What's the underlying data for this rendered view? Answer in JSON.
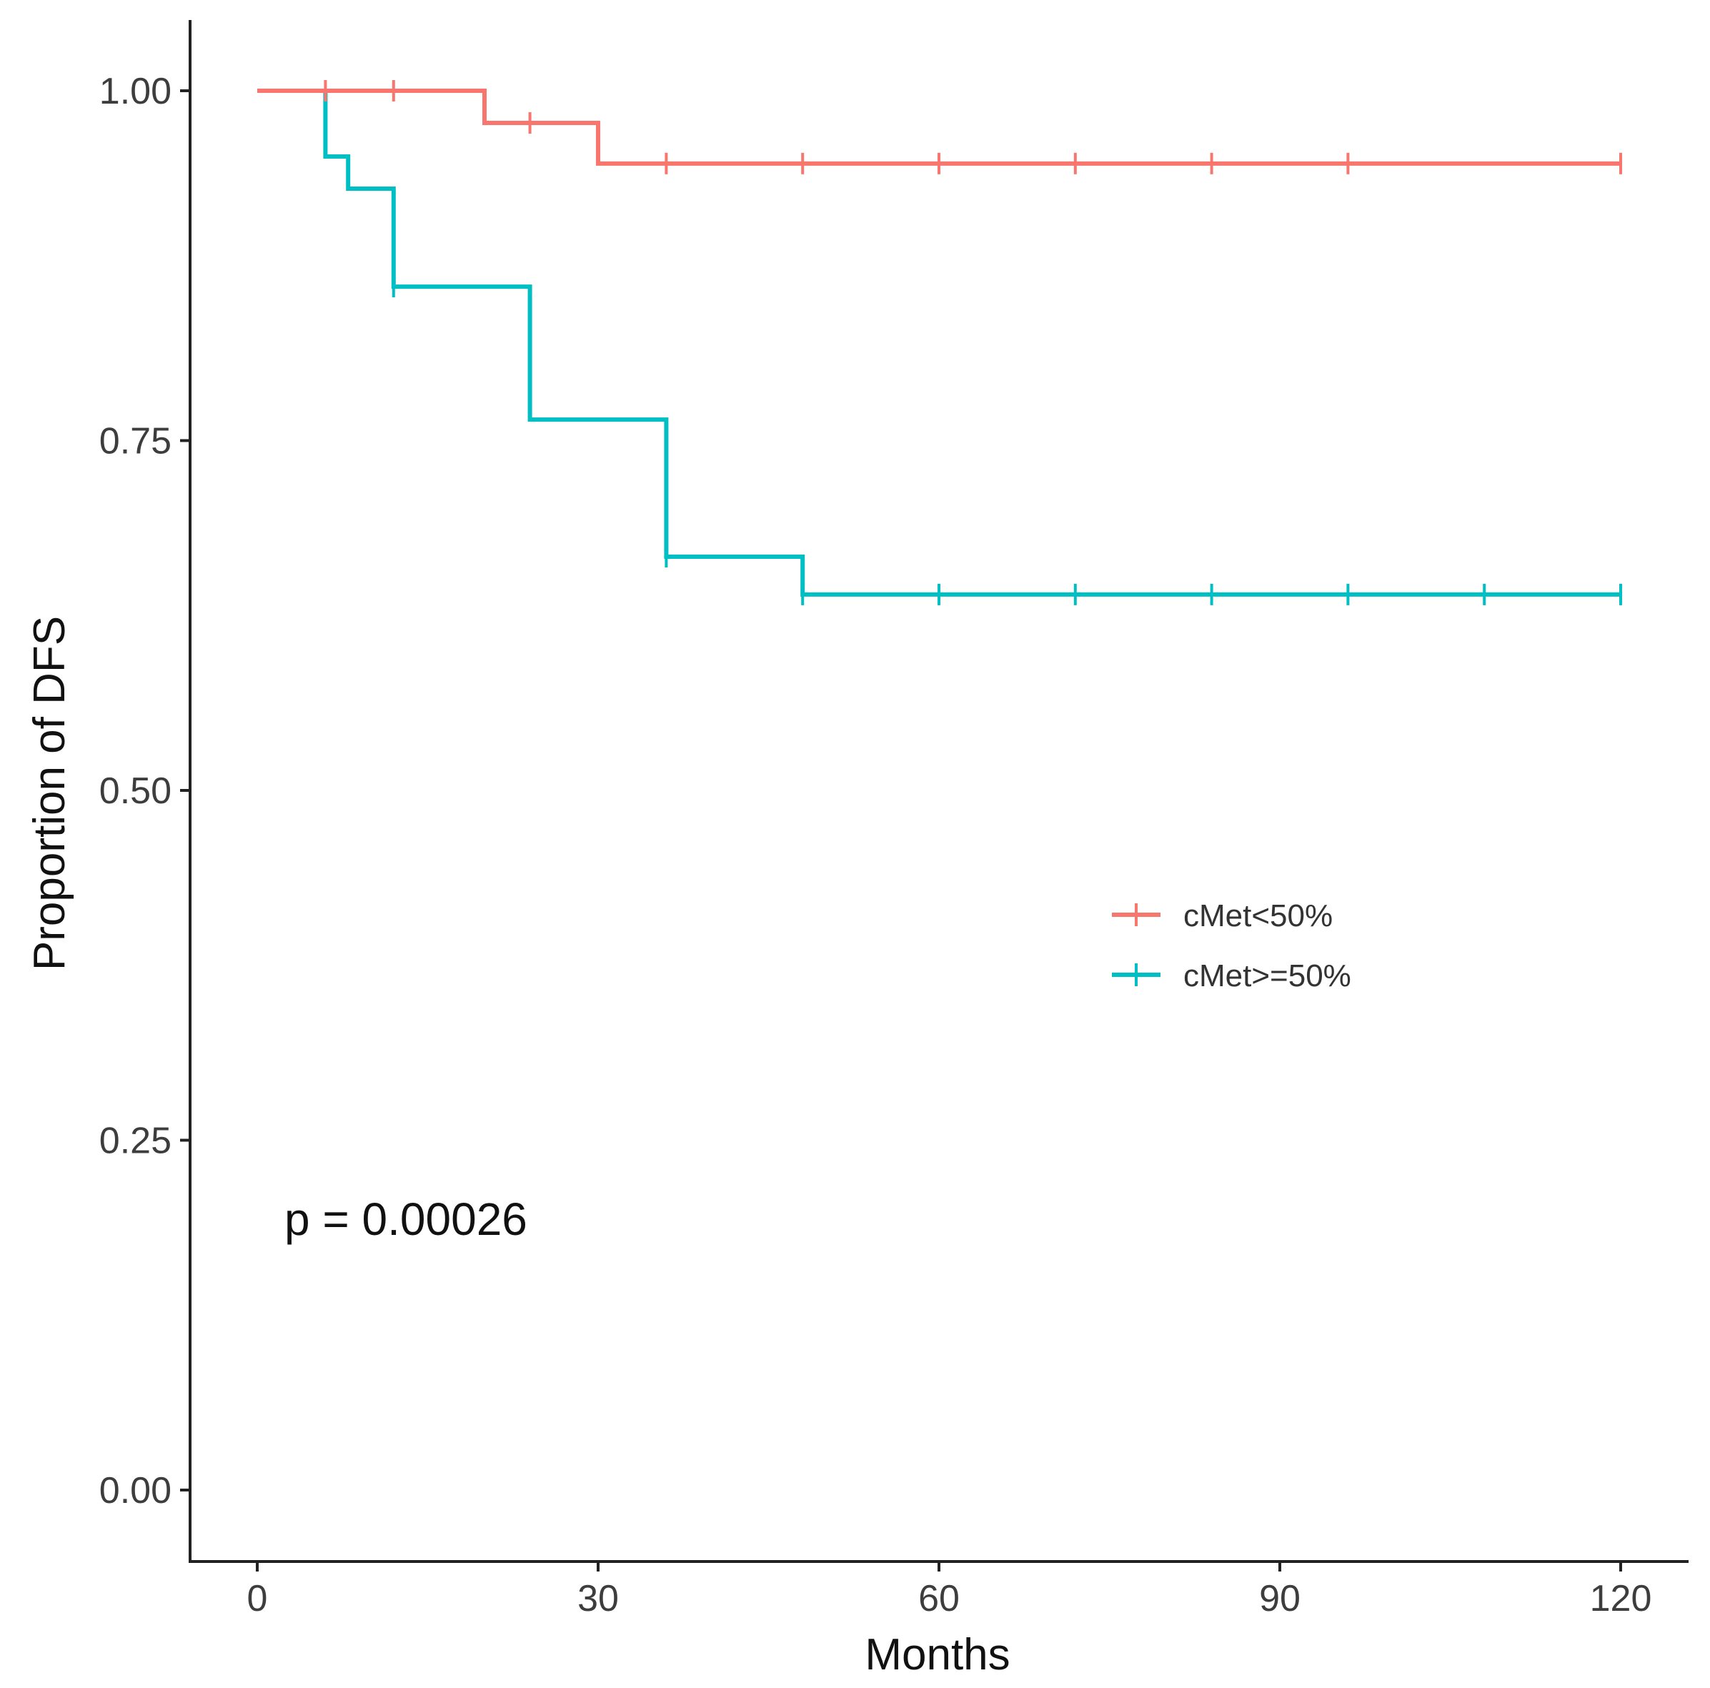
{
  "chart_data": {
    "type": "line",
    "subtype": "kaplan-meier step",
    "title": "",
    "xlabel": "Months",
    "ylabel": "Proportion of DFS",
    "xlim": [
      -5,
      125
    ],
    "ylim": [
      -0.05,
      1.05
    ],
    "xticks": [
      0,
      30,
      60,
      90,
      120
    ],
    "yticks": [
      0.0,
      0.25,
      0.5,
      0.75,
      1.0
    ],
    "xtick_labels": [
      "0",
      "30",
      "60",
      "90",
      "120"
    ],
    "ytick_labels": [
      "0.00",
      "0.25",
      "0.50",
      "0.75",
      "1.00"
    ],
    "grid": false,
    "legend_position": "center-right",
    "annotation": "p = 0.00026",
    "series": [
      {
        "name": "cMet<50%",
        "color": "#F8766D",
        "steps": [
          [
            0,
            1.0
          ],
          [
            20,
            0.977
          ],
          [
            30,
            0.948
          ],
          [
            120,
            0.948
          ]
        ],
        "censor_x": [
          6,
          12,
          24,
          36,
          48,
          60,
          72,
          84,
          96,
          120
        ],
        "censor_y": [
          1.0,
          1.0,
          0.977,
          0.948,
          0.948,
          0.948,
          0.948,
          0.948,
          0.948,
          0.948
        ]
      },
      {
        "name": "cMet>=50%",
        "color": "#00BFC4",
        "steps": [
          [
            0,
            1.0
          ],
          [
            6,
            0.953
          ],
          [
            8,
            0.93
          ],
          [
            12,
            0.86
          ],
          [
            24,
            0.765
          ],
          [
            36,
            0.667
          ],
          [
            48,
            0.64
          ],
          [
            120,
            0.64
          ]
        ],
        "censor_x": [
          12,
          36,
          48,
          60,
          72,
          84,
          96,
          108,
          120
        ],
        "censor_y": [
          0.86,
          0.667,
          0.64,
          0.64,
          0.64,
          0.64,
          0.64,
          0.64,
          0.64
        ]
      }
    ]
  }
}
